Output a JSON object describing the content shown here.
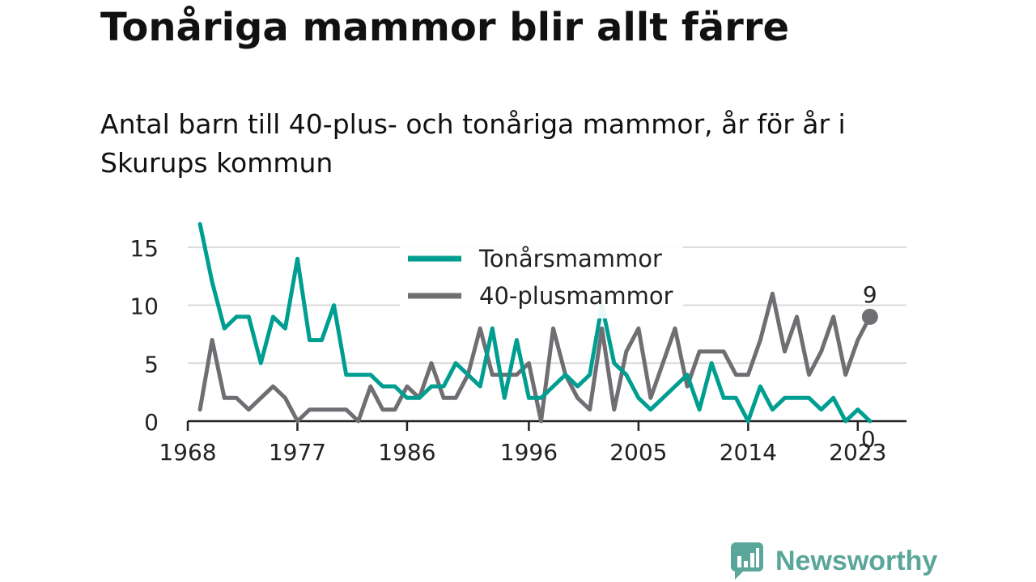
{
  "title": "Tonåriga mammor blir allt färre",
  "subtitle": "Antal barn till 40-plus- och tonåriga mammor, år för år i Skurups kommun",
  "brand": {
    "name": "Newsworthy",
    "icon": "newsworthy-logo-icon",
    "color": "#5aa69b"
  },
  "chart_data": {
    "type": "line",
    "title": "Tonåriga mammor blir allt färre",
    "subtitle": "Antal barn till 40-plus- och tonåriga mammor, år för år i Skurups kommun",
    "x": [
      1969,
      1970,
      1971,
      1972,
      1973,
      1974,
      1975,
      1976,
      1977,
      1978,
      1979,
      1980,
      1981,
      1982,
      1983,
      1984,
      1985,
      1986,
      1987,
      1988,
      1989,
      1990,
      1991,
      1992,
      1993,
      1994,
      1995,
      1996,
      1997,
      1998,
      1999,
      2000,
      2001,
      2002,
      2003,
      2004,
      2005,
      2006,
      2007,
      2008,
      2009,
      2010,
      2011,
      2012,
      2013,
      2014,
      2015,
      2016,
      2017,
      2018,
      2019,
      2020,
      2021,
      2022,
      2023,
      2024
    ],
    "series": [
      {
        "name": "Tonårsmammor",
        "color": "#009e91",
        "values": [
          17,
          12,
          8,
          9,
          9,
          5,
          9,
          8,
          14,
          7,
          7,
          10,
          4,
          4,
          4,
          3,
          3,
          2,
          2,
          3,
          3,
          5,
          4,
          3,
          8,
          2,
          7,
          2,
          2,
          3,
          4,
          3,
          4,
          10,
          5,
          4,
          2,
          1,
          2,
          3,
          4,
          1,
          5,
          2,
          2,
          0,
          3,
          1,
          2,
          2,
          2,
          1,
          2,
          0,
          1,
          0
        ],
        "end_label": "0"
      },
      {
        "name": "40-plusmammor",
        "color": "#6e6e73",
        "values": [
          1,
          7,
          2,
          2,
          1,
          2,
          3,
          2,
          0,
          1,
          1,
          1,
          1,
          0,
          3,
          1,
          1,
          3,
          2,
          5,
          2,
          2,
          4,
          8,
          4,
          4,
          4,
          5,
          0,
          8,
          4,
          2,
          1,
          8,
          1,
          6,
          8,
          2,
          5,
          8,
          3,
          6,
          6,
          6,
          4,
          4,
          7,
          11,
          6,
          9,
          4,
          6,
          9,
          4,
          7,
          9
        ],
        "end_label": "9"
      }
    ],
    "x_ticks": [
      1968,
      1977,
      1986,
      1996,
      2005,
      2014,
      2023
    ],
    "y_ticks": [
      0,
      5,
      10,
      15
    ],
    "xlim": [
      1968,
      2027
    ],
    "ylim": [
      0,
      17.5
    ],
    "grid": "horizontal",
    "legend": "top-center"
  }
}
